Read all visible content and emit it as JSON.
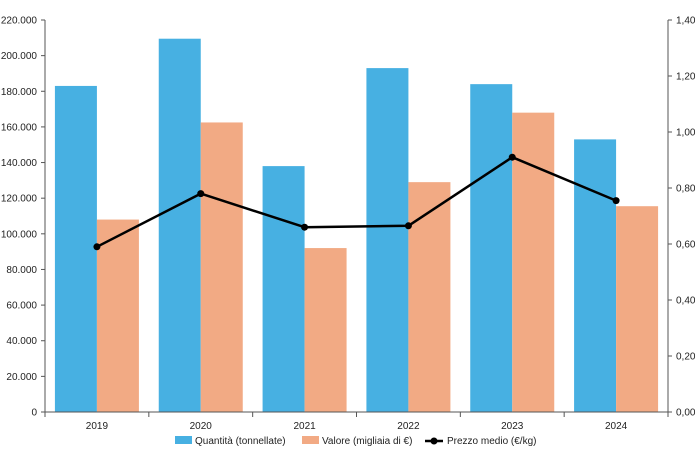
{
  "chart_data": {
    "type": "bar",
    "categories": [
      "2019",
      "2020",
      "2021",
      "2022",
      "2023",
      "2024"
    ],
    "series": [
      {
        "name": "Quantità (tonnellate)",
        "kind": "bar",
        "axis": "left",
        "color": "#47b0e2",
        "values": [
          183000,
          209500,
          138000,
          193000,
          184000,
          153000
        ]
      },
      {
        "name": "Valore (migliaia di €)",
        "kind": "bar",
        "axis": "left",
        "color": "#f2aa84",
        "values": [
          108000,
          162500,
          92000,
          129000,
          168000,
          115500
        ]
      },
      {
        "name": "Prezzo medio (€/kg)",
        "kind": "line",
        "axis": "right",
        "color": "#000000",
        "values": [
          0.59,
          0.78,
          0.66,
          0.665,
          0.91,
          0.755
        ]
      }
    ],
    "left_axis": {
      "min": 0,
      "max": 220000,
      "ticks": [
        0,
        20000,
        40000,
        60000,
        80000,
        100000,
        120000,
        140000,
        160000,
        180000,
        200000,
        220000
      ],
      "tick_labels": [
        "0",
        "20.000",
        "40.000",
        "60.000",
        "80.000",
        "100.000",
        "120.000",
        "140.000",
        "160.000",
        "180.000",
        "200.000",
        "220.000"
      ]
    },
    "right_axis": {
      "min": 0,
      "max": 1.4,
      "ticks": [
        0,
        0.2,
        0.4,
        0.6,
        0.8,
        1.0,
        1.2,
        1.4
      ],
      "tick_labels": [
        "0,00",
        "0,20",
        "0,40",
        "0,60",
        "0,80",
        "1,00",
        "1,20",
        "1,40"
      ]
    },
    "grid": false,
    "legend_position": "bottom"
  }
}
